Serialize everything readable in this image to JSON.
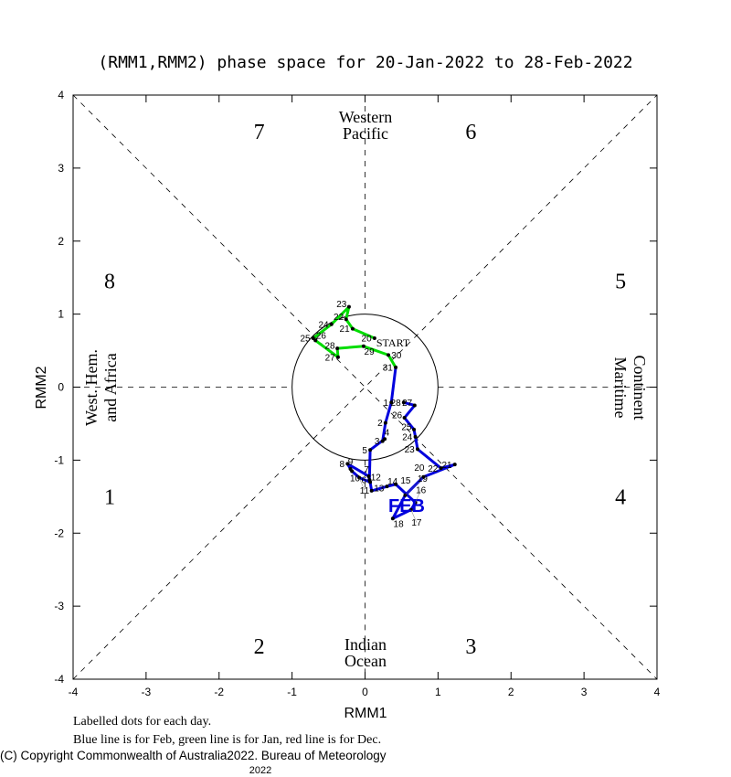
{
  "chart_data": {
    "type": "line",
    "title": "(RMM1,RMM2) phase space for 20-Jan-2022 to 28-Feb-2022",
    "xlabel": "RMM1",
    "ylabel": "RMM2",
    "xlim": [
      -4,
      4
    ],
    "ylim": [
      -4,
      4
    ],
    "xticks": [
      "-4",
      "-3",
      "-2",
      "-1",
      "0",
      "1",
      "2",
      "3",
      "4"
    ],
    "yticks": [
      "-4",
      "-3",
      "-2",
      "-1",
      "0",
      "1",
      "2",
      "3",
      "4"
    ],
    "phase_labels": [
      {
        "phase": "1",
        "x": -3.5,
        "y": -1.5
      },
      {
        "phase": "2",
        "x": -1.45,
        "y": -3.55
      },
      {
        "phase": "3",
        "x": 1.45,
        "y": -3.55
      },
      {
        "phase": "4",
        "x": 3.5,
        "y": -1.5
      },
      {
        "phase": "5",
        "x": 3.5,
        "y": 1.45
      },
      {
        "phase": "6",
        "x": 1.45,
        "y": 3.5
      },
      {
        "phase": "7",
        "x": -1.45,
        "y": 3.5
      },
      {
        "phase": "8",
        "x": -3.5,
        "y": 1.45
      }
    ],
    "region_labels": {
      "top": [
        "Western",
        "Pacific"
      ],
      "bottom": [
        "Indian",
        "Ocean"
      ],
      "left": [
        "West. Hem.",
        "and Africa"
      ],
      "right": [
        "Maritime",
        "Continent"
      ]
    },
    "start_label": "START",
    "month_label": "FEB",
    "series": [
      {
        "name": "Jan",
        "color": "#00dd00",
        "points": [
          {
            "day": "20",
            "x": 0.13,
            "y": 0.67
          },
          {
            "day": "21",
            "x": -0.17,
            "y": 0.8
          },
          {
            "day": "22",
            "x": -0.26,
            "y": 0.93
          },
          {
            "day": "23",
            "x": -0.22,
            "y": 1.1
          },
          {
            "day": "24",
            "x": -0.46,
            "y": 0.86
          },
          {
            "day": "25",
            "x": -0.71,
            "y": 0.67
          },
          {
            "day": "26",
            "x": -0.68,
            "y": 0.64
          },
          {
            "day": "27",
            "x": -0.37,
            "y": 0.41
          },
          {
            "day": "28",
            "x": -0.38,
            "y": 0.53
          },
          {
            "day": "29",
            "x": -0.02,
            "y": 0.56
          },
          {
            "day": "30",
            "x": 0.32,
            "y": 0.44
          },
          {
            "day": "31",
            "x": 0.42,
            "y": 0.27
          }
        ]
      },
      {
        "name": "Feb",
        "color": "#0000dd",
        "points": [
          {
            "day": "1",
            "x": 0.36,
            "y": -0.21
          },
          {
            "day": "2",
            "x": 0.28,
            "y": -0.49
          },
          {
            "day": "3",
            "x": 0.24,
            "y": -0.74
          },
          {
            "day": "4",
            "x": 0.27,
            "y": -0.71
          },
          {
            "day": "5",
            "x": 0.07,
            "y": -0.86
          },
          {
            "day": "6",
            "x": 0.06,
            "y": -1.27
          },
          {
            "day": "7",
            "x": 0.05,
            "y": -1.22
          },
          {
            "day": "8",
            "x": -0.24,
            "y": -1.05
          },
          {
            "day": "9",
            "x": -0.2,
            "y": -1.12
          },
          {
            "day": "10",
            "x": -0.18,
            "y": -1.15
          },
          {
            "day": "11",
            "x": -0.08,
            "y": -1.24
          },
          {
            "day": "12",
            "x": 0.07,
            "y": -1.3
          },
          {
            "day": "13",
            "x": 0.09,
            "y": -1.42
          },
          {
            "day": "14",
            "x": 0.3,
            "y": -1.36
          },
          {
            "day": "15",
            "x": 0.42,
            "y": -1.33
          },
          {
            "day": "16",
            "x": 0.69,
            "y": -1.58
          },
          {
            "day": "17",
            "x": 0.63,
            "y": -1.68
          },
          {
            "day": "18",
            "x": 0.38,
            "y": -1.8
          },
          {
            "day": "19",
            "x": 0.55,
            "y": -1.48
          },
          {
            "day": "20",
            "x": 0.8,
            "y": -1.23
          },
          {
            "day": "21",
            "x": 1.23,
            "y": -1.06
          },
          {
            "day": "22",
            "x": 1.04,
            "y": -1.11
          },
          {
            "day": "23",
            "x": 0.72,
            "y": -0.85
          },
          {
            "day": "24",
            "x": 0.69,
            "y": -0.68
          },
          {
            "day": "25",
            "x": 0.67,
            "y": -0.58
          },
          {
            "day": "26",
            "x": 0.54,
            "y": -0.42
          },
          {
            "day": "27",
            "x": 0.68,
            "y": -0.25
          },
          {
            "day": "28",
            "x": 0.53,
            "y": -0.21
          }
        ]
      }
    ]
  },
  "footer": {
    "note1": "Labelled dots for each day.",
    "note2": "Blue line is for Feb, green line is for Jan, red line is for Dec.",
    "copyright": "(C) Copyright Commonwealth of Australia",
    "copyright_year": "2022",
    "copyright_rest": ". Bureau of Meteorology",
    "year_below": "2022"
  }
}
